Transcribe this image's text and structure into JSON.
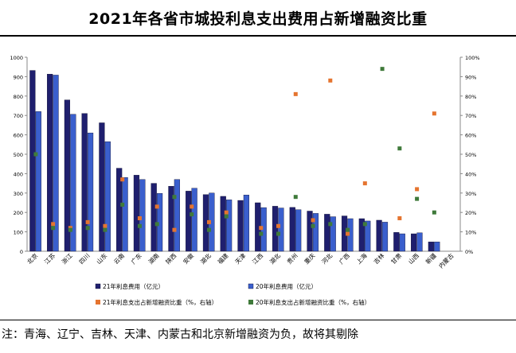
{
  "header": {
    "title": "2021年各省市城投利息支出费用占新增融资比重"
  },
  "footnote": "注：青海、辽宁、吉林、天津、内蒙古和北京新增融资为负，故将其剔除",
  "chart_data": {
    "type": "bar",
    "categories": [
      "北京",
      "江苏",
      "浙江",
      "四川",
      "山东",
      "云南",
      "广东",
      "湖南",
      "陕西",
      "安徽",
      "湖北",
      "福建",
      "天津",
      "江西",
      "湖北",
      "贵州",
      "重庆",
      "河北",
      "广西",
      "上海",
      "吉林",
      "甘肃",
      "山西",
      "新疆",
      "内蒙古"
    ],
    "series": [
      {
        "name": "21年利息费用（亿元）",
        "type": "bar",
        "axis": "left",
        "color": "#1f1f6e",
        "values": [
          932,
          913,
          780,
          710,
          662,
          428,
          392,
          350,
          335,
          310,
          292,
          283,
          262,
          250,
          232,
          226,
          207,
          191,
          182,
          168,
          160,
          97,
          90,
          48,
          null
        ]
      },
      {
        "name": "20年利息费用（亿元）",
        "type": "bar",
        "axis": "left",
        "color": "#3a5fcd",
        "values": [
          720,
          908,
          706,
          610,
          565,
          380,
          370,
          298,
          370,
          325,
          300,
          265,
          290,
          225,
          223,
          214,
          195,
          178,
          168,
          156,
          150,
          90,
          95,
          48,
          null
        ]
      },
      {
        "name": "21年利息支出占新增融资比重（%，右轴）",
        "type": "scatter",
        "axis": "right",
        "color": "#e5742f",
        "values": [
          null,
          14,
          12,
          15,
          13,
          37,
          17,
          23,
          11,
          23,
          15,
          20,
          null,
          12,
          13,
          81,
          16,
          88,
          9,
          35,
          null,
          17,
          32,
          71,
          null
        ]
      },
      {
        "name": "20年利息支出占新增融资比重（%，右轴）",
        "type": "scatter",
        "axis": "right",
        "color": "#3f7a3a",
        "values": [
          50,
          12,
          11,
          12,
          11,
          24,
          13,
          14,
          28,
          19,
          11,
          18,
          null,
          9,
          9,
          28,
          13,
          14,
          11,
          14,
          94,
          53,
          27,
          20,
          null
        ]
      }
    ],
    "y_left": {
      "ylim": [
        0,
        1000
      ],
      "ticks": [
        "0",
        "100",
        "200",
        "300",
        "400",
        "500",
        "600",
        "700",
        "800",
        "900",
        "1000"
      ]
    },
    "y_right": {
      "ylim": [
        0,
        100
      ],
      "ticks": [
        "0%",
        "10%",
        "20%",
        "30%",
        "40%",
        "50%",
        "60%",
        "70%",
        "80%",
        "90%",
        "100%"
      ]
    },
    "legend_position": "bottom",
    "grid": false
  }
}
